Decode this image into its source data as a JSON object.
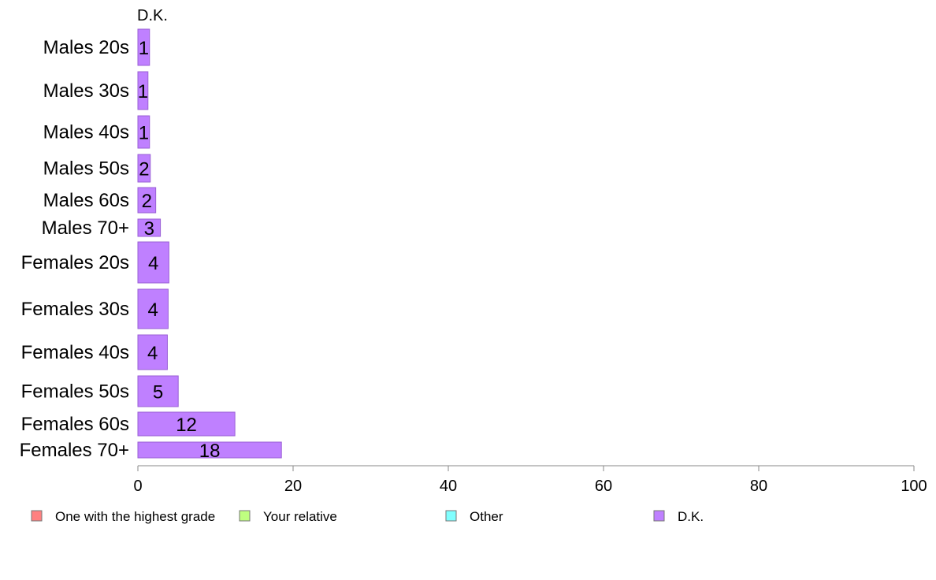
{
  "chart_data": {
    "type": "bar",
    "orientation": "horizontal",
    "stacked": true,
    "series_label_top": "D.K.",
    "categories": [
      "Males 20s",
      "Males 30s",
      "Males 40s",
      "Males 50s",
      "Males 60s",
      "Males 70+",
      "Females 20s",
      "Females 30s",
      "Females 40s",
      "Females 50s",
      "Females 60s",
      "Females 70+"
    ],
    "series": [
      {
        "name": "D.K.",
        "color": "#bf80ff",
        "values": [
          1.5,
          1.3,
          1.5,
          1.6,
          2.3,
          2.9,
          4.0,
          3.9,
          3.8,
          5.2,
          12.5,
          18.5
        ],
        "labels": [
          "1",
          "1",
          "1",
          "2",
          "2",
          "3",
          "4",
          "4",
          "4",
          "5",
          "12",
          "18"
        ]
      }
    ],
    "xlim": [
      0,
      100
    ],
    "xticks": [
      0,
      20,
      40,
      60,
      80,
      100
    ],
    "legend": {
      "position": "bottom",
      "entries": [
        {
          "label": "One with the highest grade",
          "color": "#ff8080"
        },
        {
          "label": "Your relative",
          "color": "#bfff80"
        },
        {
          "label": "Other",
          "color": "#80ffff"
        },
        {
          "label": "D.K.",
          "color": "#bf80ff"
        }
      ]
    }
  }
}
